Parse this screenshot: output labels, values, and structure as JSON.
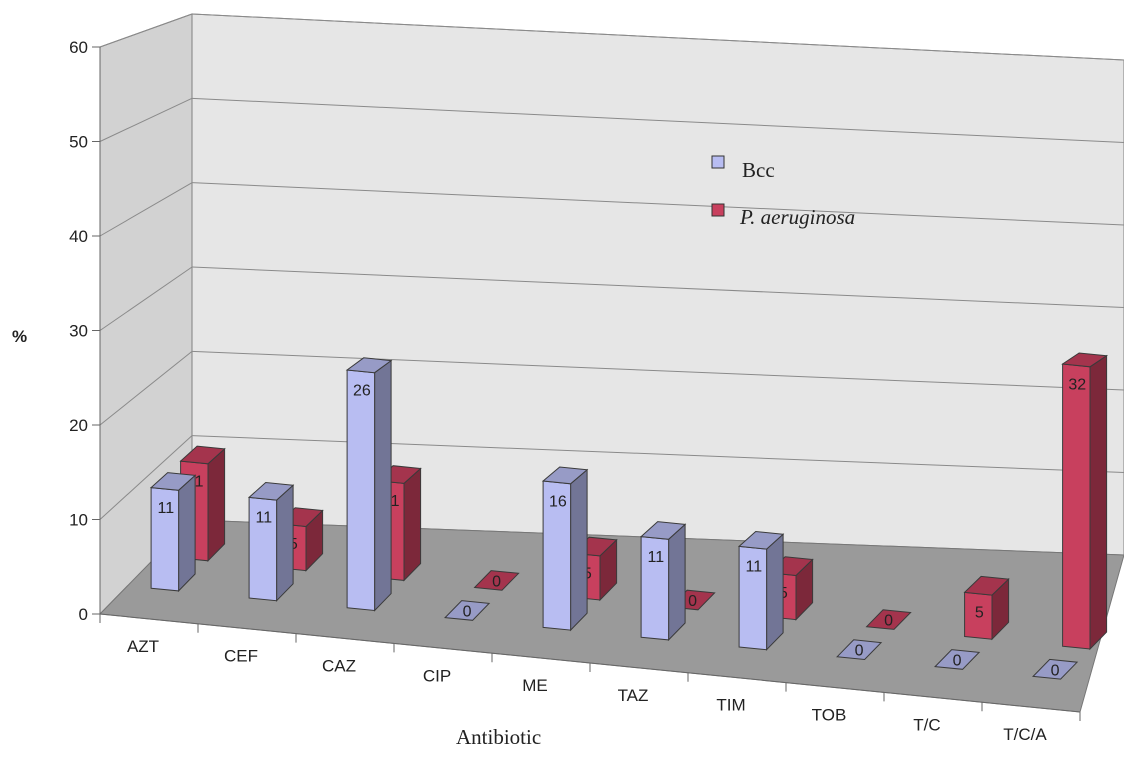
{
  "chart_data": {
    "type": "bar",
    "title": "",
    "xlabel": "Antibiotic",
    "ylabel": "%",
    "ylim": [
      0,
      60
    ],
    "yticks": [
      0,
      10,
      20,
      30,
      40,
      50,
      60
    ],
    "grid": true,
    "legend_position": "top-right",
    "categories": [
      "AZT",
      "CEF",
      "CAZ",
      "CIP",
      "ME",
      "TAZ",
      "TIM",
      "TOB",
      "T/C",
      "T/C/A"
    ],
    "series": [
      {
        "name": "Bcc",
        "color": "#b8bdf2",
        "values": [
          11,
          11,
          26,
          0,
          16,
          11,
          11,
          0,
          0,
          0
        ]
      },
      {
        "name": "P. aeruginosa",
        "color": "#c8405e",
        "values": [
          11,
          5,
          11,
          0,
          5,
          0,
          5,
          0,
          5,
          32
        ]
      }
    ]
  }
}
